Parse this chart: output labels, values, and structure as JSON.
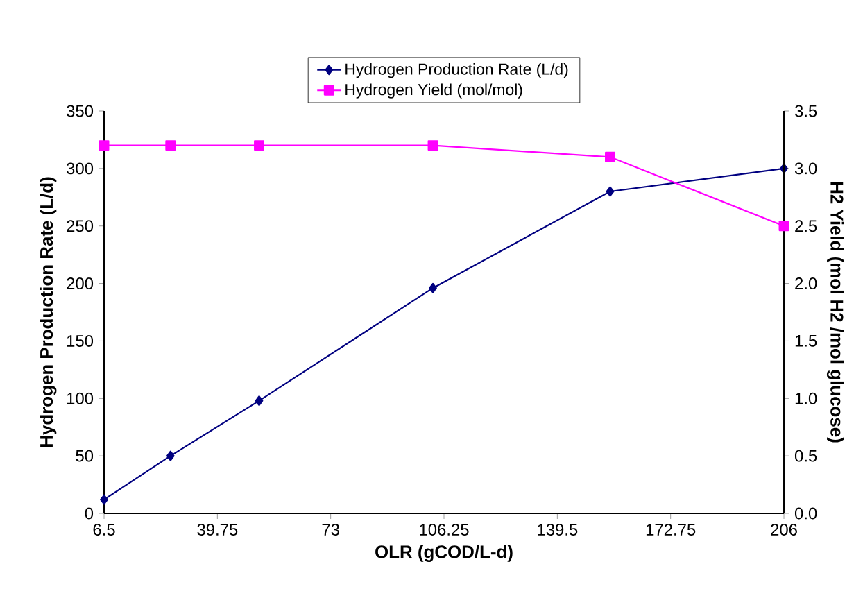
{
  "chart_data": {
    "type": "line",
    "xlabel": "OLR (gCOD/L-d)",
    "ylabel": "Hydrogen Production Rate (L/d)",
    "y2label": "H2 Yield (mol H2 /mol glucose)",
    "x": [
      6.5,
      26,
      52,
      103,
      155,
      206
    ],
    "series": [
      {
        "name": "Hydrogen Production Rate (L/d)",
        "color": "#000080",
        "marker": "diamond",
        "values": [
          12,
          50,
          98,
          196,
          280,
          300
        ]
      },
      {
        "name": "Hydrogen Yield (mol/mol)",
        "color": "#ff00ff",
        "marker": "square",
        "axis": "y2",
        "values": [
          3.2,
          3.2,
          3.2,
          3.2,
          3.1,
          2.5
        ]
      }
    ],
    "xlim": [
      6.5,
      206
    ],
    "xticks": [
      6.5,
      39.75,
      73,
      106.25,
      139.5,
      172.75,
      206
    ],
    "ylim": [
      0,
      350
    ],
    "yticks": [
      0,
      50,
      100,
      150,
      200,
      250,
      300,
      350
    ],
    "y2lim": [
      0,
      3.5
    ],
    "y2ticks": [
      {
        "value": 0,
        "label": "0.0"
      },
      0.5,
      {
        "value": 1,
        "label": "1.0"
      },
      1.5,
      {
        "value": 2,
        "label": "2.0"
      },
      2.5,
      {
        "value": 3,
        "label": "3.0"
      },
      3.5
    ],
    "grid": false,
    "legend": "top",
    "line_style": "solid"
  }
}
